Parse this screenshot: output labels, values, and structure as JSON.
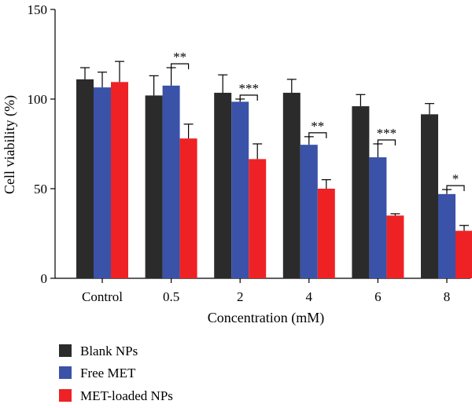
{
  "chart_data": {
    "type": "bar",
    "xlabel": "Concentration (mM)",
    "ylabel": "Cell viability (%)",
    "ylim": [
      0,
      150
    ],
    "yticks": [
      "0",
      "50",
      "100",
      "150"
    ],
    "categories": [
      "Control",
      "0.5",
      "2",
      "4",
      "6",
      "8"
    ],
    "series": [
      {
        "name": "Blank NPs",
        "color": "#2b2b2b",
        "values": [
          111,
          102,
          103.5,
          103.5,
          96,
          91.5
        ],
        "errors": [
          6.5,
          11,
          10,
          7.5,
          6.5,
          6
        ]
      },
      {
        "name": "Free MET",
        "color": "#3a52a8",
        "values": [
          106.5,
          107.5,
          98.5,
          74.5,
          67.5,
          47
        ],
        "errors": [
          8.5,
          10,
          1.5,
          4.5,
          7.5,
          2.5
        ]
      },
      {
        "name": "MET-loaded NPs",
        "color": "#ee2224",
        "values": [
          109.5,
          78,
          66.5,
          50,
          35,
          26.5
        ],
        "errors": [
          11.5,
          8,
          8.5,
          5,
          1,
          3
        ]
      }
    ],
    "significance": [
      {
        "category_index": 1,
        "label": "**"
      },
      {
        "category_index": 2,
        "label": "***"
      },
      {
        "category_index": 3,
        "label": "**"
      },
      {
        "category_index": 4,
        "label": "***"
      },
      {
        "category_index": 5,
        "label": "*"
      }
    ],
    "legend_position": "bottom-left"
  }
}
